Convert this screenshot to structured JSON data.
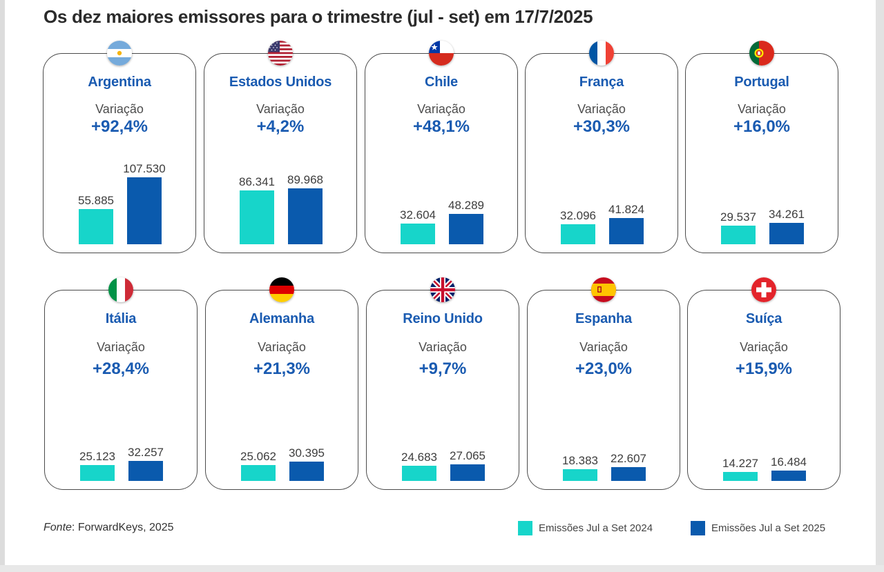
{
  "title": "Os dez maiores emissores para o trimestre (jul - set) em 17/7/2025",
  "variation_label": "Variação",
  "source": {
    "prefix": "Fonte",
    "text": ": ForwardKeys, 2025"
  },
  "legend": [
    {
      "label": "Emissões Jul a Set 2024",
      "color": "#17d5ca"
    },
    {
      "label": "Emissões Jul a Set 2025",
      "color": "#0a5aad"
    }
  ],
  "colors": {
    "series_2024": "#17d5ca",
    "series_2025": "#0a5aad",
    "accent_text": "#1a5bb1"
  },
  "chart_data": {
    "type": "bar",
    "title": "Os dez maiores emissores para o trimestre (jul - set) em 17/7/2025",
    "series": [
      {
        "name": "Emissões Jul a Set 2024"
      },
      {
        "name": "Emissões Jul a Set 2025"
      }
    ],
    "countries": [
      {
        "name": "Argentina",
        "flag": "argentina-flag-icon",
        "variation": "+92,4%",
        "v2024": 55885,
        "v2025": 107530,
        "label2024": "55.885",
        "label2025": "107.530"
      },
      {
        "name": "Estados Unidos",
        "flag": "usa-flag-icon",
        "variation": "+4,2%",
        "v2024": 86341,
        "v2025": 89968,
        "label2024": "86.341",
        "label2025": "89.968"
      },
      {
        "name": "Chile",
        "flag": "chile-flag-icon",
        "variation": "+48,1%",
        "v2024": 32604,
        "v2025": 48289,
        "label2024": "32.604",
        "label2025": "48.289"
      },
      {
        "name": "França",
        "flag": "france-flag-icon",
        "variation": "+30,3%",
        "v2024": 32096,
        "v2025": 41824,
        "label2024": "32.096",
        "label2025": "41.824"
      },
      {
        "name": "Portugal",
        "flag": "portugal-flag-icon",
        "variation": "+16,0%",
        "v2024": 29537,
        "v2025": 34261,
        "label2024": "29.537",
        "label2025": "34.261"
      },
      {
        "name": "Itália",
        "flag": "italy-flag-icon",
        "variation": "+28,4%",
        "v2024": 25123,
        "v2025": 32257,
        "label2024": "25.123",
        "label2025": "32.257"
      },
      {
        "name": "Alemanha",
        "flag": "germany-flag-icon",
        "variation": "+21,3%",
        "v2024": 25062,
        "v2025": 30395,
        "label2024": "25.062",
        "label2025": "30.395"
      },
      {
        "name": "Reino Unido",
        "flag": "uk-flag-icon",
        "variation": "+9,7%",
        "v2024": 24683,
        "v2025": 27065,
        "label2024": "24.683",
        "label2025": "27.065"
      },
      {
        "name": "Espanha",
        "flag": "spain-flag-icon",
        "variation": "+23,0%",
        "v2024": 18383,
        "v2025": 22607,
        "label2024": "18.383",
        "label2025": "22.607"
      },
      {
        "name": "Suíça",
        "flag": "switzerland-flag-icon",
        "variation": "+15,9%",
        "v2024": 14227,
        "v2025": 16484,
        "label2024": "14.227",
        "label2025": "16.484"
      }
    ]
  }
}
